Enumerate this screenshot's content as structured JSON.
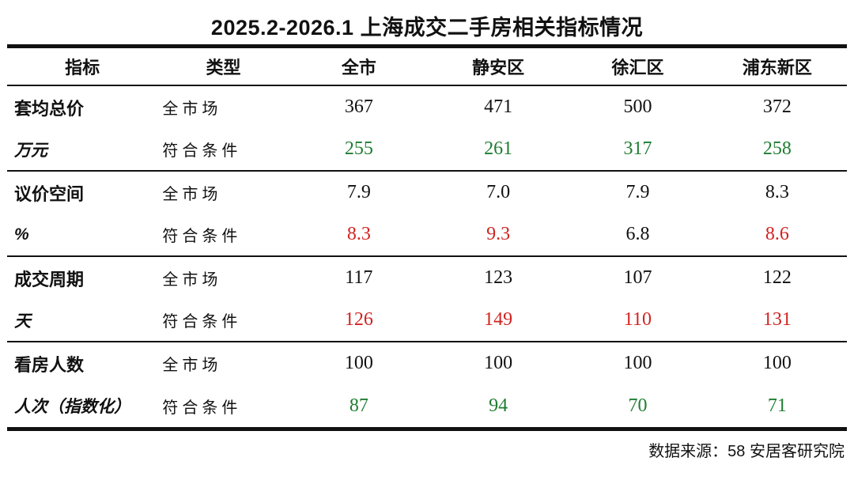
{
  "title": "2025.2-2026.1 上海成交二手房相关指标情况",
  "source_note": "数据来源：58 安居客研究院",
  "colors": {
    "ink": "#111111",
    "positive_green": "#1e7d32",
    "alert_red": "#d02421"
  },
  "chart_data": {
    "type": "table",
    "title": "2025.2-2026.1 上海成交二手房相关指标情况",
    "columns": [
      "指标",
      "类型",
      "全市",
      "静安区",
      "徐汇区",
      "浦东新区"
    ],
    "groups": [
      {
        "indicator": "套均总价",
        "unit": "万元",
        "rows": [
          {
            "label": "全市场",
            "values": [
              "367",
              "471",
              "500",
              "372"
            ],
            "value_colors": [
              "#111111",
              "#111111",
              "#111111",
              "#111111"
            ]
          },
          {
            "label": "符合条件",
            "values": [
              "255",
              "261",
              "317",
              "258"
            ],
            "value_colors": [
              "#1e7d32",
              "#1e7d32",
              "#1e7d32",
              "#1e7d32"
            ]
          }
        ]
      },
      {
        "indicator": "议价空间",
        "unit": "%",
        "rows": [
          {
            "label": "全市场",
            "values": [
              "7.9",
              "7.0",
              "7.9",
              "8.3"
            ],
            "value_colors": [
              "#111111",
              "#111111",
              "#111111",
              "#111111"
            ]
          },
          {
            "label": "符合条件",
            "values": [
              "8.3",
              "9.3",
              "6.8",
              "8.6"
            ],
            "value_colors": [
              "#d02421",
              "#d02421",
              "#111111",
              "#d02421"
            ]
          }
        ]
      },
      {
        "indicator": "成交周期",
        "unit": "天",
        "rows": [
          {
            "label": "全市场",
            "values": [
              "117",
              "123",
              "107",
              "122"
            ],
            "value_colors": [
              "#111111",
              "#111111",
              "#111111",
              "#111111"
            ]
          },
          {
            "label": "符合条件",
            "values": [
              "126",
              "149",
              "110",
              "131"
            ],
            "value_colors": [
              "#d02421",
              "#d02421",
              "#d02421",
              "#d02421"
            ]
          }
        ]
      },
      {
        "indicator": "看房人数",
        "unit": "人次（指数化）",
        "rows": [
          {
            "label": "全市场",
            "values": [
              "100",
              "100",
              "100",
              "100"
            ],
            "value_colors": [
              "#111111",
              "#111111",
              "#111111",
              "#111111"
            ]
          },
          {
            "label": "符合条件",
            "values": [
              "87",
              "94",
              "70",
              "71"
            ],
            "value_colors": [
              "#1e7d32",
              "#1e7d32",
              "#1e7d32",
              "#1e7d32"
            ]
          }
        ]
      }
    ]
  }
}
